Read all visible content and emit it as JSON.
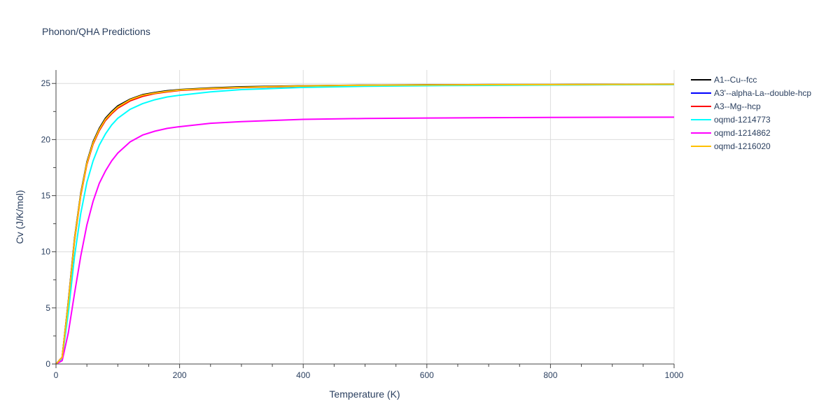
{
  "chart_data": {
    "type": "line",
    "title": "Phonon/QHA Predictions",
    "xlabel": "Temperature (K)",
    "ylabel": "Cv (J/K/mol)",
    "xlim": [
      0,
      1000
    ],
    "ylim": [
      0,
      26.2
    ],
    "xticks": [
      0,
      200,
      400,
      600,
      800,
      1000
    ],
    "yticks": [
      0,
      5,
      10,
      15,
      20,
      25
    ],
    "grid": true,
    "legend_position": "top-right",
    "series": [
      {
        "name": "A1--Cu--fcc",
        "color": "#000000",
        "x": [
          0,
          10,
          20,
          30,
          40,
          50,
          60,
          70,
          80,
          90,
          100,
          120,
          140,
          160,
          180,
          200,
          250,
          300,
          400,
          500,
          600,
          700,
          800,
          900,
          1000
        ],
        "y": [
          0,
          0.6,
          5.6,
          11.2,
          15.2,
          18.0,
          19.8,
          21.0,
          21.9,
          22.5,
          23.0,
          23.6,
          24.0,
          24.2,
          24.35,
          24.45,
          24.6,
          24.7,
          24.8,
          24.85,
          24.88,
          24.9,
          24.9,
          24.92,
          24.93
        ]
      },
      {
        "name": "A3'--alpha-La--double-hcp",
        "color": "#0000ff",
        "x": [
          0,
          10,
          20,
          30,
          40,
          50,
          60,
          70,
          80,
          90,
          100,
          120,
          140,
          160,
          180,
          200,
          250,
          300,
          400,
          500,
          600,
          700,
          800,
          900,
          1000
        ],
        "y": [
          0,
          0.6,
          5.5,
          11.1,
          15.1,
          17.9,
          19.7,
          20.9,
          21.8,
          22.4,
          22.9,
          23.5,
          23.9,
          24.15,
          24.3,
          24.4,
          24.55,
          24.65,
          24.78,
          24.83,
          24.86,
          24.88,
          24.89,
          24.9,
          24.92
        ]
      },
      {
        "name": "A3--Mg--hcp",
        "color": "#ff0000",
        "x": [
          0,
          10,
          20,
          30,
          40,
          50,
          60,
          70,
          80,
          90,
          100,
          120,
          140,
          160,
          180,
          200,
          250,
          300,
          400,
          500,
          600,
          700,
          800,
          900,
          1000
        ],
        "y": [
          0,
          0.6,
          5.4,
          11.0,
          15.0,
          17.8,
          19.6,
          20.8,
          21.7,
          22.3,
          22.8,
          23.45,
          23.85,
          24.1,
          24.25,
          24.38,
          24.52,
          24.63,
          24.76,
          24.82,
          24.85,
          24.87,
          24.88,
          24.89,
          24.91
        ]
      },
      {
        "name": "oqmd-1214773",
        "color": "#00ffff",
        "x": [
          0,
          10,
          20,
          30,
          40,
          50,
          60,
          70,
          80,
          90,
          100,
          120,
          140,
          160,
          180,
          200,
          250,
          300,
          400,
          500,
          600,
          700,
          800,
          900,
          1000
        ],
        "y": [
          0,
          0.5,
          4.6,
          9.6,
          13.4,
          16.2,
          18.1,
          19.5,
          20.5,
          21.3,
          21.9,
          22.7,
          23.2,
          23.55,
          23.8,
          23.95,
          24.25,
          24.45,
          24.65,
          24.75,
          24.8,
          24.83,
          24.86,
          24.88,
          24.9
        ]
      },
      {
        "name": "oqmd-1214862",
        "color": "#ff00ff",
        "x": [
          0,
          10,
          20,
          30,
          40,
          50,
          60,
          70,
          80,
          90,
          100,
          120,
          140,
          160,
          180,
          200,
          250,
          300,
          400,
          500,
          600,
          700,
          800,
          900,
          1000
        ],
        "y": [
          0,
          0.3,
          2.8,
          6.3,
          9.6,
          12.4,
          14.5,
          16.1,
          17.2,
          18.1,
          18.8,
          19.8,
          20.4,
          20.75,
          21.0,
          21.15,
          21.45,
          21.6,
          21.8,
          21.88,
          21.92,
          21.95,
          21.97,
          21.99,
          22.0
        ]
      },
      {
        "name": "oqmd-1216020",
        "color": "#ffc000",
        "x": [
          0,
          10,
          20,
          30,
          40,
          50,
          60,
          70,
          80,
          90,
          100,
          120,
          140,
          160,
          180,
          200,
          250,
          300,
          400,
          500,
          600,
          700,
          800,
          900,
          1000
        ],
        "y": [
          0,
          0.6,
          5.5,
          11.1,
          15.1,
          17.9,
          19.7,
          20.9,
          21.8,
          22.4,
          22.9,
          23.55,
          23.95,
          24.15,
          24.3,
          24.42,
          24.56,
          24.66,
          24.78,
          24.84,
          24.87,
          24.89,
          24.9,
          24.91,
          24.93
        ]
      }
    ]
  }
}
